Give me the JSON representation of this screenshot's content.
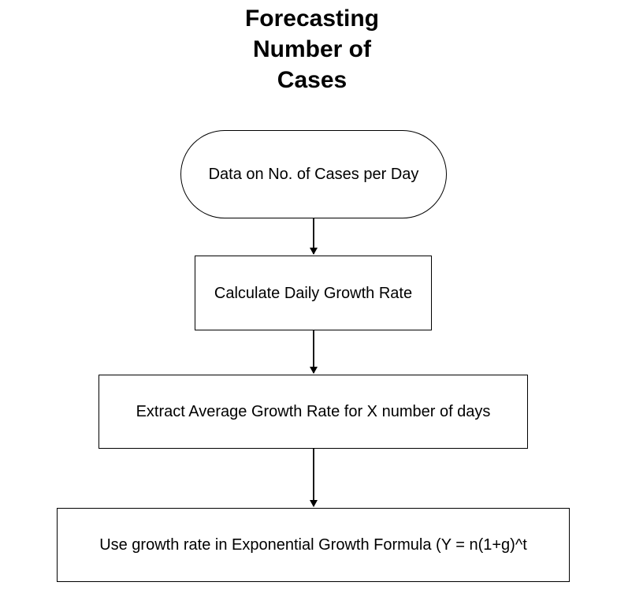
{
  "title_lines": [
    "Forecasting",
    "Number of",
    "Cases"
  ],
  "nodes": {
    "start": "Data on No. of Cases per Day",
    "step1": "Calculate Daily Growth Rate",
    "step2": "Extract Average Growth Rate for X number of days",
    "step3": "Use growth rate in Exponential Growth Formula (Y = n(1+g)^t"
  },
  "colors": {
    "stroke": "#000000",
    "background": "#ffffff"
  }
}
